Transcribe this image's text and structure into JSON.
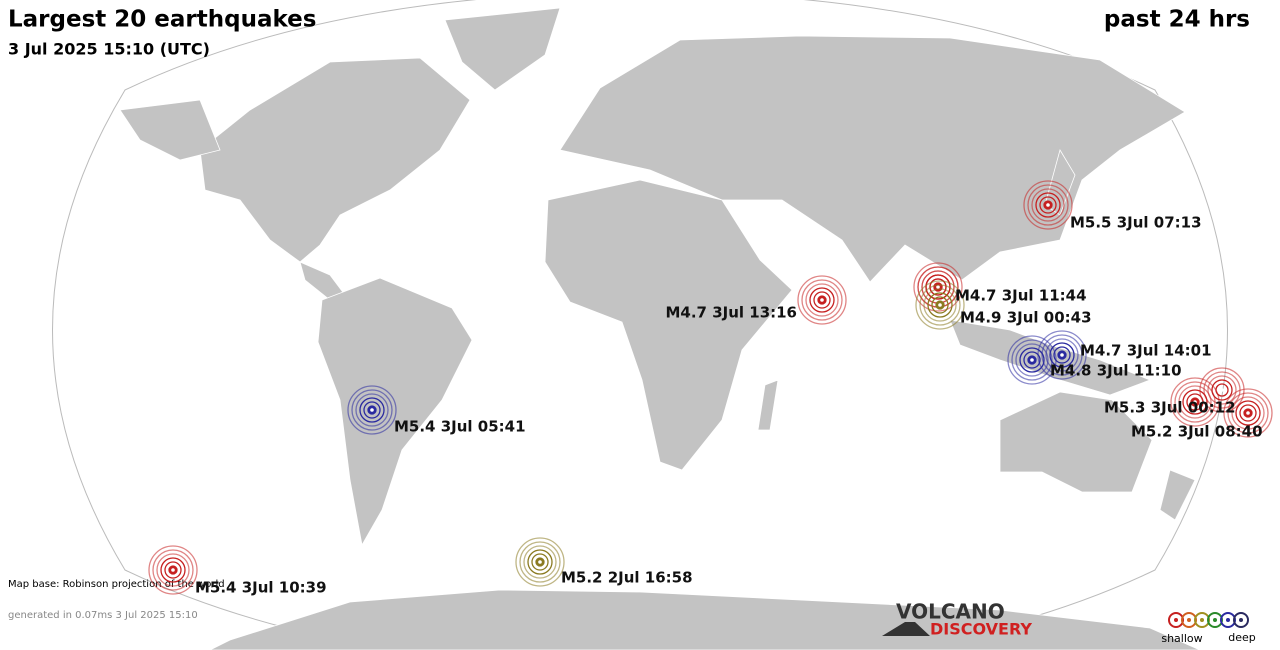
{
  "header": {
    "title": "Largest 20 earthquakes",
    "subtitle": "3 Jul 2025 15:10 (UTC)",
    "period": "past 24 hrs"
  },
  "quakes": [
    {
      "label": "M5.5  3Jul 07:13",
      "color": "#c62020"
    },
    {
      "label": "M4.7  3Jul 13:16",
      "color": "#c62020"
    },
    {
      "label": "M4.7  3Jul 11:44",
      "color": "#c62020"
    },
    {
      "label": "M4.9  3Jul 00:43",
      "color": "#8a7a20"
    },
    {
      "label": "M4.7  3Jul 14:01",
      "color": "#2a2aa0"
    },
    {
      "label": "M4.8  3Jul 11:10",
      "color": "#2a2aa0"
    },
    {
      "label": "M5.3  3Jul 00:12",
      "color": "#c62020"
    },
    {
      "label": "M5.2  3Jul 08:40",
      "color": "#c62020"
    },
    {
      "label": "M5.4  3Jul 05:41",
      "color": "#2a2aa0"
    },
    {
      "label": "M5.4  3Jul 10:39",
      "color": "#c62020"
    },
    {
      "label": "M5.2  2Jul 16:58",
      "color": "#8a7a20"
    }
  ],
  "footer": {
    "map_base": "Map base: Robinson projection of the world",
    "generated": "generated in 0.07ms  3 Jul 2025 15:10"
  },
  "logo": {
    "line1": "VOLCANO",
    "line2": "DISCOVERY"
  },
  "legend": {
    "shallow": "shallow",
    "deep": "deep"
  }
}
